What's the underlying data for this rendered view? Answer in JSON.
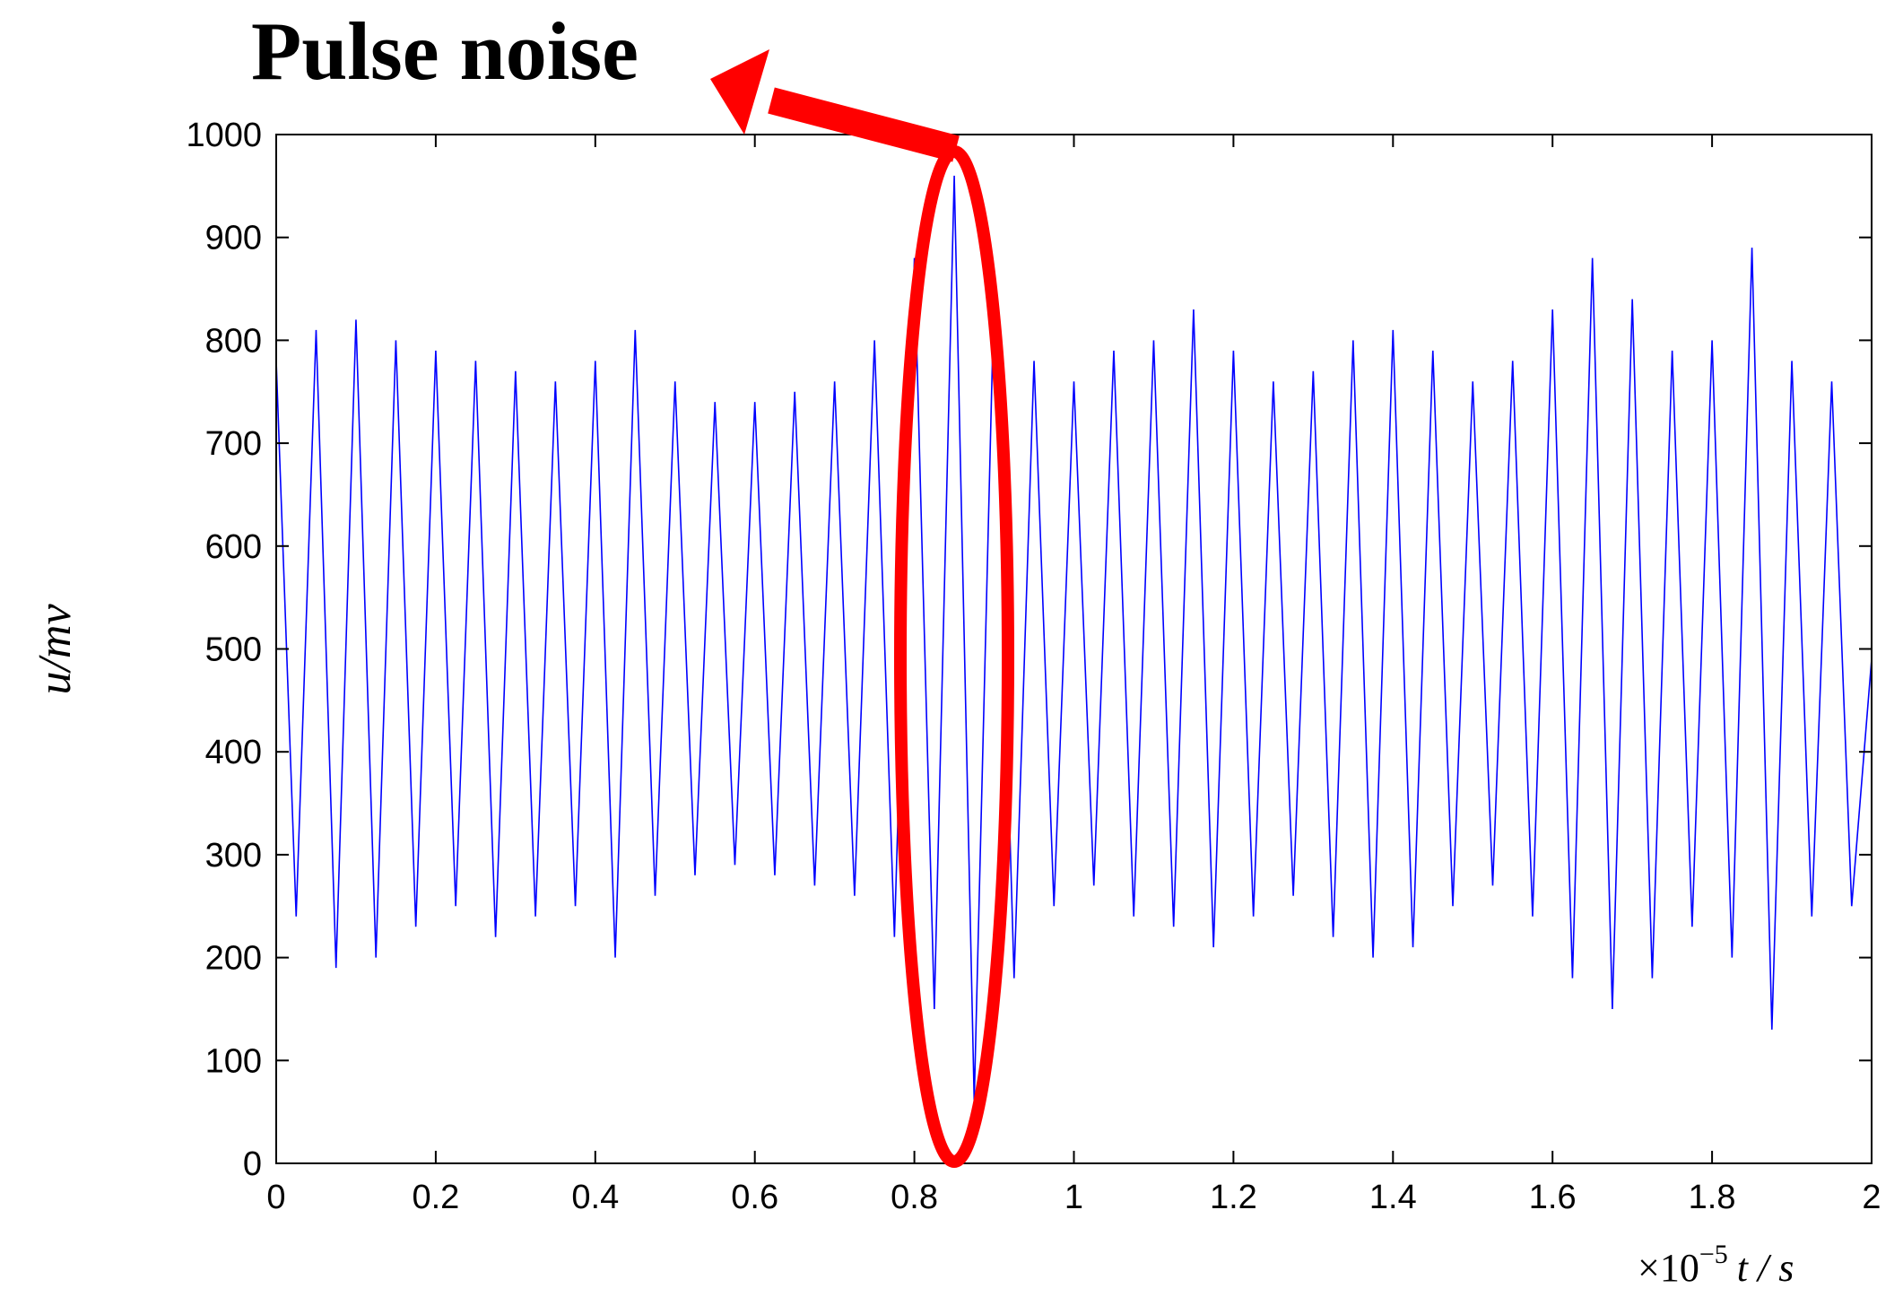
{
  "chart_data": {
    "type": "line",
    "title": "Pulse noise",
    "y_label": "u/mv",
    "x_multiplier": "×10",
    "x_exponent": "−5",
    "x_label": "t / s",
    "xlim": [
      0,
      2
    ],
    "ylim": [
      0,
      1000
    ],
    "xticks": [
      0,
      0.2,
      0.4,
      0.6,
      0.8,
      1,
      1.2,
      1.4,
      1.6,
      1.8,
      2
    ],
    "yticks": [
      0,
      100,
      200,
      300,
      400,
      500,
      600,
      700,
      800,
      900,
      1000
    ],
    "grid": false,
    "x": [
      0,
      0.025,
      0.05,
      0.075,
      0.1,
      0.125,
      0.15,
      0.175,
      0.2,
      0.225,
      0.25,
      0.275,
      0.3,
      0.325,
      0.35,
      0.375,
      0.4,
      0.425,
      0.45,
      0.475,
      0.5,
      0.525,
      0.55,
      0.575,
      0.6,
      0.625,
      0.65,
      0.675,
      0.7,
      0.725,
      0.75,
      0.775,
      0.8,
      0.825,
      0.85,
      0.875,
      0.9,
      0.925,
      0.95,
      0.975,
      1.0,
      1.025,
      1.05,
      1.075,
      1.1,
      1.125,
      1.15,
      1.175,
      1.2,
      1.225,
      1.25,
      1.275,
      1.3,
      1.325,
      1.35,
      1.375,
      1.4,
      1.425,
      1.45,
      1.475,
      1.5,
      1.525,
      1.55,
      1.575,
      1.6,
      1.625,
      1.65,
      1.675,
      1.7,
      1.725,
      1.75,
      1.775,
      1.8,
      1.825,
      1.85,
      1.875,
      1.9,
      1.925,
      1.95,
      1.975,
      2.0
    ],
    "series": [
      {
        "color": "#0000ff",
        "values": [
          780,
          240,
          810,
          190,
          820,
          200,
          800,
          230,
          790,
          250,
          780,
          220,
          770,
          240,
          760,
          250,
          780,
          200,
          810,
          260,
          760,
          280,
          740,
          290,
          740,
          280,
          750,
          270,
          760,
          260,
          800,
          220,
          880,
          150,
          960,
          60,
          850,
          180,
          780,
          250,
          760,
          270,
          790,
          240,
          800,
          230,
          830,
          210,
          790,
          240,
          760,
          260,
          770,
          220,
          800,
          200,
          810,
          210,
          790,
          250,
          760,
          270,
          780,
          240,
          830,
          180,
          880,
          150,
          840,
          180,
          790,
          230,
          800,
          200,
          890,
          130,
          780,
          240,
          760,
          250,
          490
        ]
      }
    ]
  }
}
